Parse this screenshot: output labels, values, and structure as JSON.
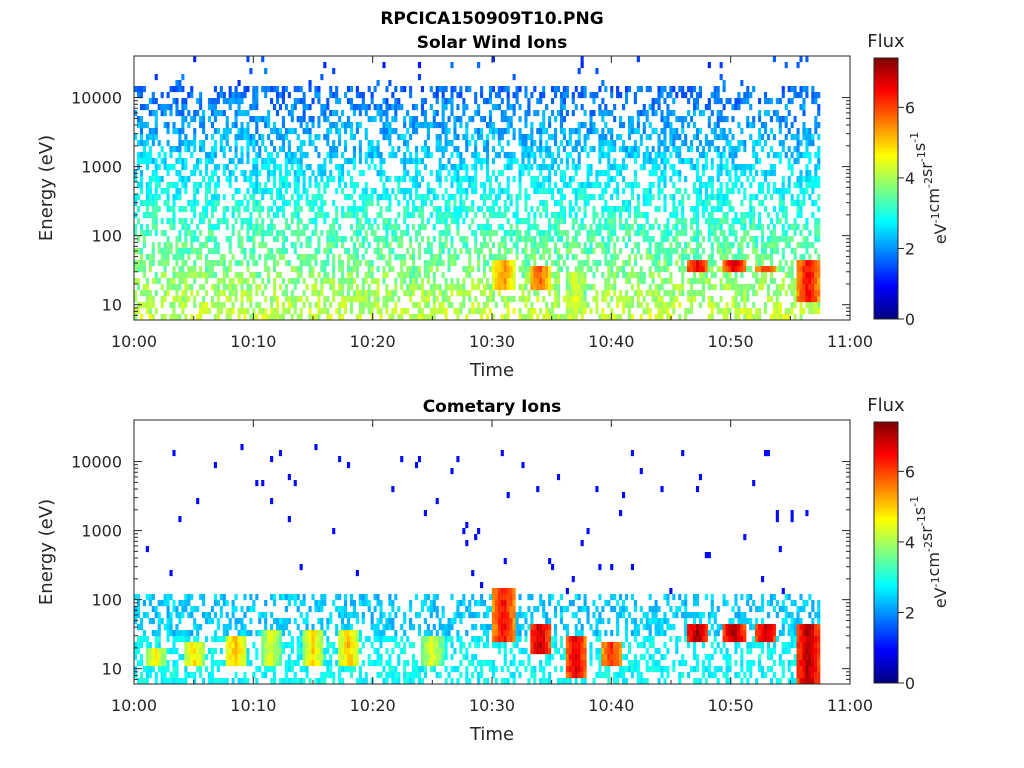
{
  "figure": {
    "title": "RPCICA150909T10.PNG"
  },
  "colormap": {
    "name": "jet",
    "stops": [
      "#00007f",
      "#0000ff",
      "#007fff",
      "#00ffff",
      "#7fff7f",
      "#ffff00",
      "#ff7f00",
      "#ff0000",
      "#7f0000"
    ]
  },
  "chart_data": [
    {
      "type": "heatmap",
      "title": "Solar Wind Ions",
      "xlabel": "Time",
      "ylabel": "Energy (eV)",
      "x_ticks": [
        "10:00",
        "10:10",
        "10:20",
        "10:30",
        "10:40",
        "10:50",
        "11:00"
      ],
      "x_range_minutes": [
        0,
        60
      ],
      "data_extent_minutes": [
        0,
        57.5
      ],
      "y_scale": "log",
      "y_ticks": [
        "10",
        "100",
        "1000",
        "10000"
      ],
      "y_tick_values": [
        10,
        100,
        1000,
        10000
      ],
      "y_range": [
        6,
        40000
      ],
      "colorbar": {
        "label": "Flux",
        "unit_base": [
          "eV",
          "cm",
          "sr",
          "s"
        ],
        "unit_exp": [
          "-1",
          "-2",
          "-1",
          "-1"
        ],
        "range": [
          0,
          7.4
        ],
        "ticks": [
          "0",
          "2",
          "4",
          "6"
        ],
        "tick_values": [
          0,
          2,
          4,
          6
        ]
      },
      "features": [
        {
          "t": 31.0,
          "e_low": 16,
          "e_high": 45,
          "flux": 5.8
        },
        {
          "t": 34.0,
          "e_low": 18,
          "e_high": 40,
          "flux": 6.2
        },
        {
          "t": 37.0,
          "e_low": 8,
          "e_high": 28,
          "flux": 4.8
        },
        {
          "t": 47.2,
          "e_low": 28,
          "e_high": 42,
          "flux": 7.0
        },
        {
          "t": 50.3,
          "e_low": 28,
          "e_high": 42,
          "flux": 7.0
        },
        {
          "t": 53.0,
          "e_low": 28,
          "e_high": 40,
          "flux": 6.6
        },
        {
          "t": 56.5,
          "e_low": 10,
          "e_high": 45,
          "flux": 6.8
        }
      ]
    },
    {
      "type": "heatmap",
      "title": "Cometary Ions",
      "xlabel": "Time",
      "ylabel": "Energy (eV)",
      "x_ticks": [
        "10:00",
        "10:10",
        "10:20",
        "10:30",
        "10:40",
        "10:50",
        "11:00"
      ],
      "x_range_minutes": [
        0,
        60
      ],
      "data_extent_minutes": [
        0,
        57.5
      ],
      "y_scale": "log",
      "y_ticks": [
        "10",
        "100",
        "1000",
        "10000"
      ],
      "y_tick_values": [
        10,
        100,
        1000,
        10000
      ],
      "y_range": [
        6,
        40000
      ],
      "colorbar": {
        "label": "Flux",
        "unit_base": [
          "eV",
          "cm",
          "sr",
          "s"
        ],
        "unit_exp": [
          "-1",
          "-2",
          "-1",
          "-1"
        ],
        "range": [
          0,
          7.4
        ],
        "ticks": [
          "0",
          "2",
          "4",
          "6"
        ],
        "tick_values": [
          0,
          2,
          4,
          6
        ]
      },
      "features": [
        {
          "t": 1.8,
          "e_low": 10,
          "e_high": 20,
          "flux": 5.0
        },
        {
          "t": 5.0,
          "e_low": 10,
          "e_high": 25,
          "flux": 5.2
        },
        {
          "t": 8.5,
          "e_low": 12,
          "e_high": 30,
          "flux": 5.5
        },
        {
          "t": 11.5,
          "e_low": 12,
          "e_high": 35,
          "flux": 4.8
        },
        {
          "t": 15.0,
          "e_low": 12,
          "e_high": 35,
          "flux": 5.2
        },
        {
          "t": 18.0,
          "e_low": 12,
          "e_high": 40,
          "flux": 5.4
        },
        {
          "t": 25.0,
          "e_low": 12,
          "e_high": 30,
          "flux": 4.8
        },
        {
          "t": 31.0,
          "e_low": 25,
          "e_high": 150,
          "flux": 6.8
        },
        {
          "t": 34.0,
          "e_low": 15,
          "e_high": 45,
          "flux": 7.2
        },
        {
          "t": 37.0,
          "e_low": 8,
          "e_high": 30,
          "flux": 7.0
        },
        {
          "t": 40.0,
          "e_low": 12,
          "e_high": 25,
          "flux": 6.5
        },
        {
          "t": 47.2,
          "e_low": 25,
          "e_high": 45,
          "flux": 7.4
        },
        {
          "t": 50.3,
          "e_low": 25,
          "e_high": 45,
          "flux": 7.4
        },
        {
          "t": 53.0,
          "e_low": 25,
          "e_high": 45,
          "flux": 7.2
        },
        {
          "t": 56.5,
          "e_low": 6,
          "e_high": 45,
          "flux": 7.4
        }
      ]
    }
  ]
}
